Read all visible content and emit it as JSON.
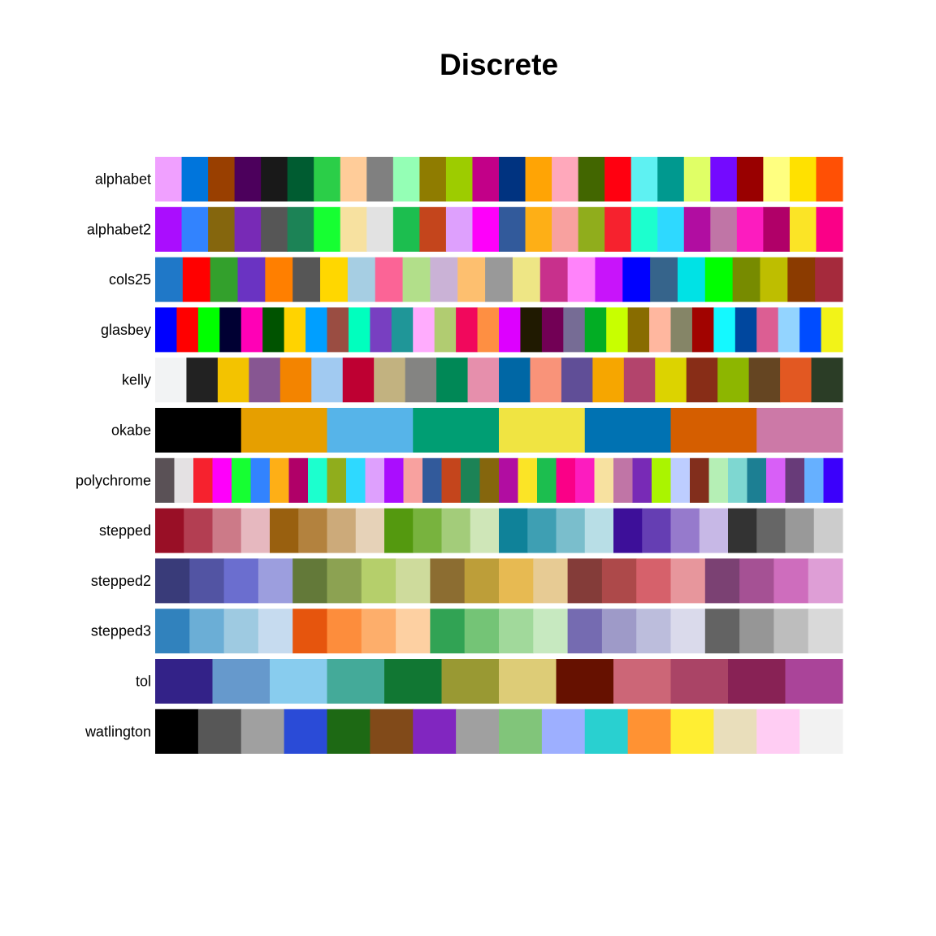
{
  "chart_data": {
    "type": "heatmap",
    "title": "Discrete",
    "grid": false,
    "legend": "none",
    "palettes": [
      {
        "name": "alphabet",
        "colors": [
          "#F0A0FF",
          "#0075DC",
          "#993F00",
          "#4C005C",
          "#191919",
          "#005C31",
          "#2BCE48",
          "#FFCC99",
          "#808080",
          "#94FFB5",
          "#8F7C00",
          "#9DCC00",
          "#C20088",
          "#003380",
          "#FFA405",
          "#FFA8BB",
          "#426600",
          "#FF0010",
          "#5EF1F2",
          "#00998F",
          "#E0FF66",
          "#740AFF",
          "#990000",
          "#FFFF80",
          "#FFE100",
          "#FF5005"
        ]
      },
      {
        "name": "alphabet2",
        "colors": [
          "#AA0DFE",
          "#3283FE",
          "#85660D",
          "#782AB6",
          "#565656",
          "#1C8356",
          "#16FF32",
          "#F7E1A0",
          "#E2E2E2",
          "#1CBE4F",
          "#C4451C",
          "#DEA0FD",
          "#FE00FA",
          "#325A9B",
          "#FEAF16",
          "#F8A19F",
          "#90AD1C",
          "#F6222E",
          "#1CFFCE",
          "#2ED9FF",
          "#B10DA1",
          "#C075A6",
          "#FC1CBF",
          "#B00068",
          "#FBE426",
          "#FA0087"
        ]
      },
      {
        "name": "cols25",
        "colors": [
          "#1F78C8",
          "#FF0000",
          "#33A02C",
          "#6A33C2",
          "#FF7F00",
          "#565656",
          "#FFD700",
          "#A6CEE3",
          "#FB6496",
          "#B2DF8A",
          "#CAB2D6",
          "#FDBF6F",
          "#999999",
          "#EEE685",
          "#C8308C",
          "#FF83FA",
          "#C814FA",
          "#0000FF",
          "#36648B",
          "#00E2E5",
          "#00FF00",
          "#778B00",
          "#BEBE00",
          "#8B3B00",
          "#A52A3C"
        ]
      },
      {
        "name": "glasbey",
        "colors": [
          "#0000FF",
          "#FF0000",
          "#00FF00",
          "#000033",
          "#FF00B6",
          "#005300",
          "#FFD300",
          "#009FFF",
          "#9A4D42",
          "#00FFBE",
          "#783FC1",
          "#1F9698",
          "#FFACFD",
          "#B1CC71",
          "#F1085C",
          "#FE8F42",
          "#DD00FF",
          "#201A01",
          "#720055",
          "#766C95",
          "#02AD24",
          "#C8FF00",
          "#886C00",
          "#FFB79F",
          "#858567",
          "#A10300",
          "#14F9FF",
          "#00479E",
          "#DC5E93",
          "#93D4FF",
          "#004CFF",
          "#F2F318"
        ]
      },
      {
        "name": "kelly",
        "colors": [
          "#F2F3F4",
          "#222222",
          "#F3C300",
          "#875692",
          "#F38400",
          "#A1CAF1",
          "#BE0032",
          "#C2B280",
          "#848482",
          "#008856",
          "#E68FAC",
          "#0067A5",
          "#F99379",
          "#604E97",
          "#F6A600",
          "#B3446C",
          "#DCD300",
          "#882D17",
          "#8DB600",
          "#654522",
          "#E25822",
          "#2B3D26"
        ]
      },
      {
        "name": "okabe",
        "colors": [
          "#000000",
          "#E69F00",
          "#56B4E9",
          "#009E73",
          "#F0E442",
          "#0072B2",
          "#D55E00",
          "#CC79A7"
        ]
      },
      {
        "name": "polychrome",
        "colors": [
          "#5A5156",
          "#E4E1E3",
          "#F6222E",
          "#FE00FA",
          "#16FF32",
          "#3283FE",
          "#FEAF16",
          "#B00068",
          "#1CFFCE",
          "#90AD1C",
          "#2ED9FF",
          "#DEA0FD",
          "#AA0DFE",
          "#F8A19F",
          "#325A9B",
          "#C4451C",
          "#1C8356",
          "#85660D",
          "#B10DA1",
          "#FBE426",
          "#1CBE4F",
          "#FA0087",
          "#FC1CBF",
          "#F7E1A0",
          "#C075A6",
          "#782AB6",
          "#AAF400",
          "#BDCDFF",
          "#822E1C",
          "#B5EFB5",
          "#7ED7D1",
          "#1C7F93",
          "#D85FF7",
          "#683B79",
          "#66B0FF",
          "#3B00FB"
        ]
      },
      {
        "name": "stepped",
        "colors": [
          "#990F26",
          "#B33E52",
          "#CC7A88",
          "#E6B8BF",
          "#99600F",
          "#B3823E",
          "#CCAA7A",
          "#E6D2B8",
          "#54990F",
          "#78B33E",
          "#A3CC7A",
          "#CFE6B8",
          "#0F8299",
          "#3E9FB3",
          "#7ABECC",
          "#B8DEE6",
          "#3D0F99",
          "#653EB3",
          "#967ACC",
          "#C7B8E6",
          "#333333",
          "#666666",
          "#999999",
          "#CCCCCC"
        ]
      },
      {
        "name": "stepped2",
        "colors": [
          "#393B79",
          "#5254A3",
          "#6B6ECF",
          "#9C9EDE",
          "#637939",
          "#8CA252",
          "#B5CF6B",
          "#CEDB9C",
          "#8C6D31",
          "#BD9E39",
          "#E7BA52",
          "#E7CB94",
          "#843C39",
          "#AD494A",
          "#D6616B",
          "#E7969C",
          "#7B4173",
          "#A55194",
          "#CE6DBD",
          "#DE9ED6"
        ]
      },
      {
        "name": "stepped3",
        "colors": [
          "#3182BD",
          "#6BAED6",
          "#9ECAE1",
          "#C6DBEF",
          "#E6550D",
          "#FD8D3C",
          "#FDAE6B",
          "#FDD0A2",
          "#31A354",
          "#74C476",
          "#A1D99B",
          "#C7E9C0",
          "#756BB1",
          "#9E9AC8",
          "#BCBDDC",
          "#DADAEB",
          "#636363",
          "#969696",
          "#BDBDBD",
          "#D9D9D9"
        ]
      },
      {
        "name": "tol",
        "colors": [
          "#332288",
          "#6699CC",
          "#88CCEE",
          "#44AA99",
          "#117733",
          "#999933",
          "#DDCC77",
          "#661100",
          "#CC6677",
          "#AA4466",
          "#882255",
          "#AA4499"
        ]
      },
      {
        "name": "watlington",
        "colors": [
          "#000000",
          "#575757",
          "#A0A0A0",
          "#2A4BD7",
          "#1D6914",
          "#814A19",
          "#8126C0",
          "#A0A0A0",
          "#81C57A",
          "#9DAFFF",
          "#29D0D0",
          "#FF9233",
          "#FFEE33",
          "#E9DEBB",
          "#FFCDF3",
          "#F2F2F2"
        ]
      }
    ]
  }
}
